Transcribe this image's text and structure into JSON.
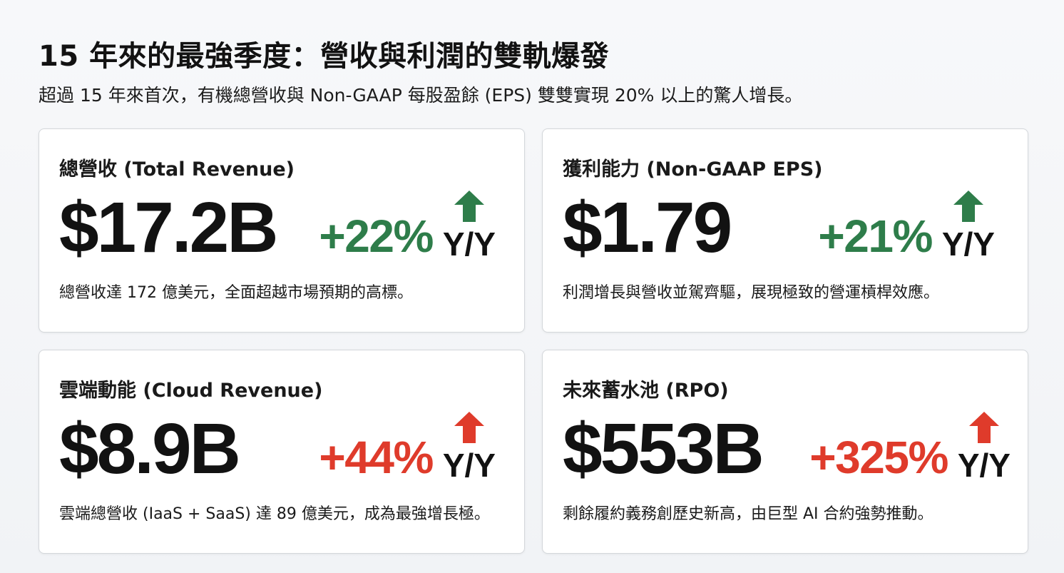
{
  "header": {
    "title": "15 年來的最強季度：營收與利潤的雙軌爆發",
    "subtitle": "超過 15 年來首次，有機總營收與 Non-GAAP 每股盈餘 (EPS) 雙雙實現 20% 以上的驚人增長。"
  },
  "colors": {
    "positive_green": "#2e7d4a",
    "highlight_red": "#df3b2b",
    "text_dark": "#121212"
  },
  "cards": [
    {
      "label": "總營收 (Total Revenue)",
      "value": "$17.2B",
      "change": "+22%",
      "change_suffix": "Y/Y",
      "arrow_icon": "arrow-up-icon",
      "accent": "green",
      "description": "總營收達 172 億美元，全面超越市場預期的高標。"
    },
    {
      "label": "獲利能力 (Non-GAAP EPS)",
      "value": "$1.79",
      "change": "+21%",
      "change_suffix": "Y/Y",
      "arrow_icon": "arrow-up-icon",
      "accent": "green",
      "description": "利潤增長與營收並駕齊驅，展現極致的營運槓桿效應。"
    },
    {
      "label": "雲端動能 (Cloud Revenue)",
      "value": "$8.9B",
      "change": "+44%",
      "change_suffix": "Y/Y",
      "arrow_icon": "arrow-up-icon",
      "accent": "red",
      "description": "雲端總營收 (IaaS + SaaS) 達 89 億美元，成為最強增長極。"
    },
    {
      "label": "未來蓄水池 (RPO)",
      "value": "$553B",
      "change": "+325%",
      "change_suffix": "Y/Y",
      "arrow_icon": "arrow-up-icon",
      "accent": "red",
      "description": "剩餘履約義務創歷史新高，由巨型 AI 合約強勢推動。"
    }
  ]
}
